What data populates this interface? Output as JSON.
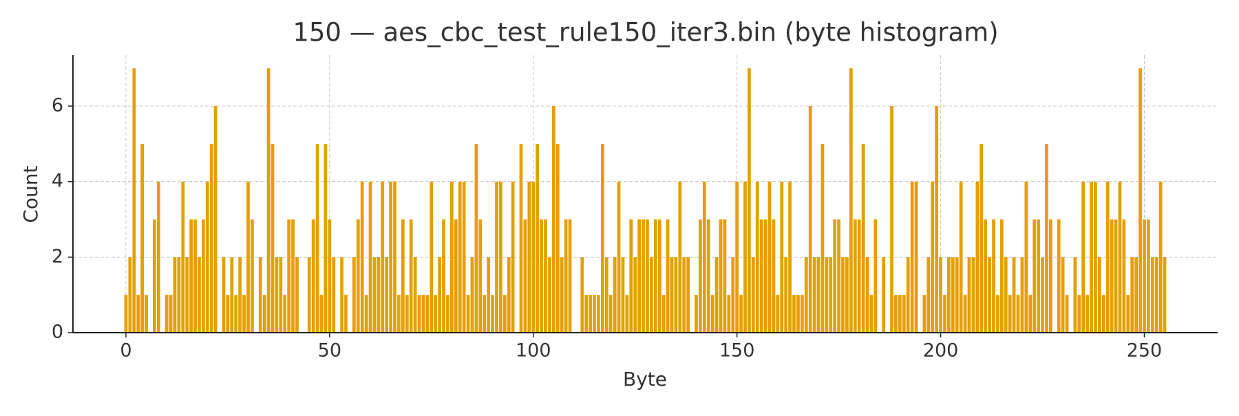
{
  "chart_data": {
    "type": "histogram",
    "title": "150 — aes_cbc_test_rule150_iter3.bin (byte histogram)",
    "xlabel": "Byte",
    "ylabel": "Count",
    "color": "#e69f00",
    "grid": true,
    "xlim": [
      -13,
      268
    ],
    "ylim": [
      0,
      7.35
    ],
    "xticks": [
      0,
      50,
      100,
      150,
      200,
      250
    ],
    "yticks": [
      0,
      2,
      4,
      6
    ],
    "bins": [
      -0.5,
      0.5,
      1.5,
      2.5,
      3.5,
      4.5,
      5.5,
      6.5,
      7.5,
      8.5,
      9.5,
      10.5,
      11.5,
      12.5,
      13.5,
      14.5,
      15.5,
      16.5,
      17.5,
      18.5,
      19.5,
      20.5,
      21.5,
      22.5,
      23.5,
      24.5,
      25.5,
      26.5,
      27.5,
      28.5,
      29.5,
      30.5,
      31.5,
      32.5,
      33.5,
      34.5,
      35.5,
      36.5,
      37.5,
      38.5,
      39.5,
      40.5,
      41.5,
      42.5,
      43.5,
      44.5,
      45.5,
      46.5,
      47.5,
      48.5,
      49.5,
      50.5,
      51.5,
      52.5,
      53.5,
      54.5,
      55.5,
      56.5,
      57.5,
      58.5,
      59.5,
      60.5,
      61.5,
      62.5,
      63.5,
      64.5,
      65.5,
      66.5,
      67.5,
      68.5,
      69.5,
      70.5,
      71.5,
      72.5,
      73.5,
      74.5,
      75.5,
      76.5,
      77.5,
      78.5,
      79.5,
      80.5,
      81.5,
      82.5,
      83.5,
      84.5,
      85.5,
      86.5,
      87.5,
      88.5,
      89.5,
      90.5,
      91.5,
      92.5,
      93.5,
      94.5,
      95.5,
      96.5,
      97.5,
      98.5,
      99.5,
      100.5,
      101.5,
      102.5,
      103.5,
      104.5,
      105.5,
      106.5,
      107.5,
      108.5,
      109.5,
      110.5,
      111.5,
      112.5,
      113.5,
      114.5,
      115.5,
      116.5,
      117.5,
      118.5,
      119.5,
      120.5,
      121.5,
      122.5,
      123.5,
      124.5,
      125.5,
      126.5,
      127.5,
      128.5,
      129.5,
      130.5,
      131.5,
      132.5,
      133.5,
      134.5,
      135.5,
      136.5,
      137.5,
      138.5,
      139.5,
      140.5,
      141.5,
      142.5,
      143.5,
      144.5,
      145.5,
      146.5,
      147.5,
      148.5,
      149.5,
      150.5,
      151.5,
      152.5,
      153.5,
      154.5,
      155.5,
      156.5,
      157.5,
      158.5,
      159.5,
      160.5,
      161.5,
      162.5,
      163.5,
      164.5,
      165.5,
      166.5,
      167.5,
      168.5,
      169.5,
      170.5,
      171.5,
      172.5,
      173.5,
      174.5,
      175.5,
      176.5,
      177.5,
      178.5,
      179.5,
      180.5,
      181.5,
      182.5,
      183.5,
      184.5,
      185.5,
      186.5,
      187.5,
      188.5,
      189.5,
      190.5,
      191.5,
      192.5,
      193.5,
      194.5,
      195.5,
      196.5,
      197.5,
      198.5,
      199.5,
      200.5,
      201.5,
      202.5,
      203.5,
      204.5,
      205.5,
      206.5,
      207.5,
      208.5,
      209.5,
      210.5,
      211.5,
      212.5,
      213.5,
      214.5,
      215.5,
      216.5,
      217.5,
      218.5,
      219.5,
      220.5,
      221.5,
      222.5,
      223.5,
      224.5,
      225.5,
      226.5,
      227.5,
      228.5,
      229.5,
      230.5,
      231.5,
      232.5,
      233.5,
      234.5,
      235.5,
      236.5,
      237.5,
      238.5,
      239.5,
      240.5,
      241.5,
      242.5,
      243.5,
      244.5,
      245.5,
      246.5,
      247.5,
      248.5,
      249.5,
      250.5,
      251.5,
      252.5,
      253.5,
      254.5,
      255.5
    ],
    "values": [
      1,
      2,
      7,
      1,
      5,
      1,
      0,
      3,
      4,
      0,
      1,
      1,
      2,
      2,
      4,
      2,
      3,
      3,
      2,
      3,
      4,
      5,
      6,
      0,
      2,
      1,
      2,
      1,
      2,
      1,
      4,
      3,
      0,
      2,
      1,
      7,
      5,
      2,
      2,
      1,
      3,
      3,
      2,
      0,
      0,
      2,
      3,
      5,
      1,
      5,
      3,
      2,
      0,
      2,
      1,
      0,
      2,
      3,
      4,
      1,
      4,
      2,
      2,
      4,
      2,
      4,
      4,
      1,
      3,
      1,
      3,
      2,
      1,
      1,
      1,
      4,
      1,
      2,
      3,
      1,
      4,
      3,
      4,
      4,
      1,
      2,
      5,
      3,
      1,
      2,
      1,
      4,
      4,
      1,
      2,
      4,
      0,
      5,
      3,
      4,
      4,
      5,
      3,
      3,
      2,
      6,
      5,
      2,
      3,
      3,
      0,
      0,
      2,
      1,
      1,
      1,
      1,
      5,
      2,
      1,
      2,
      4,
      2,
      1,
      3,
      2,
      3,
      3,
      3,
      2,
      3,
      3,
      1,
      3,
      2,
      2,
      4,
      2,
      2,
      0,
      1,
      3,
      4,
      3,
      1,
      2,
      3,
      3,
      1,
      2,
      4,
      1,
      4,
      7,
      2,
      4,
      3,
      3,
      4,
      3,
      1,
      4,
      2,
      4,
      1,
      1,
      1,
      2,
      6,
      2,
      2,
      5,
      2,
      2,
      3,
      3,
      2,
      2,
      7,
      3,
      3,
      5,
      2,
      1,
      3,
      0,
      2,
      0,
      6,
      1,
      1,
      1,
      2,
      4,
      4,
      0,
      1,
      2,
      4,
      6,
      2,
      1,
      2,
      2,
      2,
      4,
      1,
      2,
      2,
      4,
      5,
      3,
      2,
      3,
      1,
      3,
      2,
      1,
      2,
      1,
      2,
      4,
      1,
      3,
      3,
      2,
      5,
      3,
      0,
      3,
      2,
      1,
      0,
      2,
      1,
      4,
      1,
      4,
      4,
      2,
      1,
      4,
      3,
      3,
      4,
      3,
      1,
      2,
      2,
      7,
      3,
      3,
      2,
      2,
      4,
      2
    ]
  }
}
